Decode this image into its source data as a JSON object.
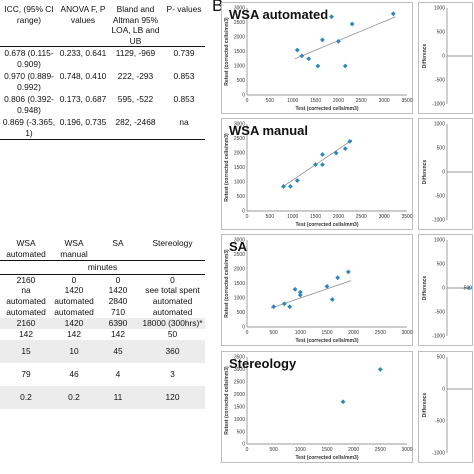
{
  "panel_label": "B",
  "table1": {
    "headers": [
      "ICC, (95% CI range)",
      "ANOVA F, P values",
      "Bland and Altman 95% LOA, LB and UB",
      "P- values"
    ],
    "rows": [
      [
        "0.678 (0.115-0.909)",
        "0.233, 0.641",
        "1129, -969",
        "0.739"
      ],
      [
        "0.970 (0.889-0.992)",
        "0.748, 0.410",
        "222, -293",
        "0.853"
      ],
      [
        "0.806 (0.392-0.948)",
        "0.173, 0.687",
        "595, -522",
        "0.853"
      ],
      [
        "0.869 (-3.365, 1)",
        "0.196, 0.735",
        "282, -2468",
        "na"
      ]
    ]
  },
  "table2": {
    "headers": [
      "WSA automated",
      "WSA manual",
      "SA",
      "Stereology"
    ],
    "units": "minutes",
    "rows": [
      [
        "2160",
        "0",
        "0",
        "0"
      ],
      [
        "na",
        "1420",
        "1420",
        "see total spent"
      ],
      [
        "automated",
        "automated",
        "2840",
        "automated"
      ],
      [
        "automated",
        "automated",
        "710",
        "automated"
      ],
      [
        "2160",
        "1420",
        "6390",
        "18000 (300hrs)*"
      ],
      [
        "142",
        "142",
        "142",
        "50"
      ],
      [
        "15",
        "10",
        "45",
        "360"
      ],
      [
        "79",
        "46",
        "4",
        "3"
      ],
      [
        "0.2",
        "0.2",
        "11",
        "120"
      ]
    ]
  },
  "chart_data": [
    {
      "type": "scatter",
      "title": "WSA automated",
      "xlabel": "Test (corrected cells/mm3)",
      "ylabel": "Retest (corrected cells/mm3)",
      "xlim": [
        0,
        3500
      ],
      "ylim": [
        0,
        3000
      ],
      "xticks": [
        "0",
        "500",
        "1000",
        "1500",
        "2000",
        "2500",
        "3000",
        "3500"
      ],
      "yticks": [
        "0",
        "500",
        "1000",
        "1500",
        "2000",
        "2500",
        "3000"
      ],
      "points": [
        [
          1100,
          1550
        ],
        [
          1200,
          1350
        ],
        [
          1350,
          1250
        ],
        [
          1550,
          1000
        ],
        [
          1650,
          1900
        ],
        [
          1850,
          2700
        ],
        [
          2000,
          1850
        ],
        [
          2150,
          1000
        ],
        [
          2300,
          2450
        ],
        [
          3200,
          2800
        ]
      ],
      "trend": [
        [
          1050,
          1250
        ],
        [
          3250,
          2700
        ]
      ],
      "diff_label": "Difference",
      "diff_yticks": [
        "1000",
        "500",
        "0",
        "-500",
        "-1000"
      ]
    },
    {
      "type": "scatter",
      "title": "WSA manual",
      "xlabel": "Test (corrected cells/mm3)",
      "ylabel": "Retest (corrected cells/mm3)",
      "xlim": [
        0,
        3500
      ],
      "ylim": [
        0,
        3000
      ],
      "xticks": [
        "0",
        "500",
        "1000",
        "1500",
        "2000",
        "2500",
        "3000",
        "3500"
      ],
      "yticks": [
        "0",
        "500",
        "1000",
        "1500",
        "2000",
        "2500",
        "3000"
      ],
      "points": [
        [
          800,
          850
        ],
        [
          950,
          850
        ],
        [
          1100,
          1050
        ],
        [
          1500,
          1600
        ],
        [
          1650,
          1600
        ],
        [
          1650,
          1950
        ],
        [
          1950,
          2000
        ],
        [
          2150,
          2150
        ],
        [
          2250,
          2400
        ]
      ],
      "trend": [
        [
          750,
          800
        ],
        [
          2300,
          2450
        ]
      ],
      "diff_label": "Difference",
      "diff_yticks": [
        "1000",
        "500",
        "0",
        "-500",
        "-1000"
      ]
    },
    {
      "type": "scatter",
      "title": "SA",
      "xlabel": "Test (corrected cells/mm3)",
      "ylabel": "Retest (corrected cells/mm3)",
      "xlim": [
        0,
        3000
      ],
      "ylim": [
        0,
        3000
      ],
      "xticks": [
        "0",
        "500",
        "1000",
        "1500",
        "2000",
        "2500",
        "3000"
      ],
      "yticks": [
        "0",
        "500",
        "1000",
        "1500",
        "2000",
        "2500",
        "3000"
      ],
      "points": [
        [
          500,
          700
        ],
        [
          700,
          800
        ],
        [
          800,
          700
        ],
        [
          900,
          1300
        ],
        [
          1000,
          1100
        ],
        [
          1000,
          1200
        ],
        [
          1500,
          1400
        ],
        [
          1600,
          950
        ],
        [
          1700,
          1700
        ],
        [
          1900,
          1900
        ]
      ],
      "trend": [
        [
          450,
          650
        ],
        [
          1950,
          1600
        ]
      ],
      "diff_label": "Difference",
      "diff_yticks": [
        "1000",
        "500",
        "0",
        "-500",
        "-1000"
      ],
      "diff_annotation": "-500"
    },
    {
      "type": "scatter",
      "title": "Stereology",
      "xlabel": "Test (corrected cells/mm3)",
      "ylabel": "Retest (corrected cells/mm3)",
      "xlim": [
        0,
        3000
      ],
      "ylim": [
        0,
        3500
      ],
      "xticks": [
        "0",
        "500",
        "1000",
        "1500",
        "2000",
        "2500",
        "3000"
      ],
      "yticks": [
        "0",
        "500",
        "1000",
        "1500",
        "2000",
        "2500",
        "3000",
        "3500"
      ],
      "points": [
        [
          1800,
          1700
        ],
        [
          2500,
          3000
        ]
      ],
      "diff_label": "Difference",
      "diff_yticks": [
        "500",
        "0",
        "-500",
        "-1000"
      ]
    }
  ]
}
